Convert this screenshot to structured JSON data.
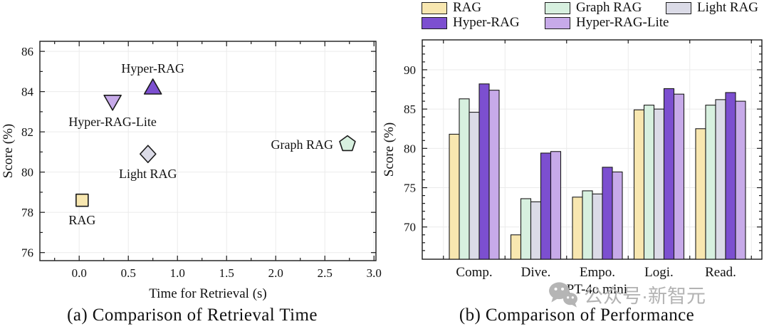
{
  "legend": {
    "items": [
      {
        "label": "RAG",
        "color": "#F8E7B0",
        "row": 0,
        "col": 0
      },
      {
        "label": "Graph RAG",
        "color": "#D7F0DF",
        "row": 0,
        "col": 1
      },
      {
        "label": "Light RAG",
        "color": "#DBDBE7",
        "row": 0,
        "col": 2
      },
      {
        "label": "Hyper-RAG",
        "color": "#7C4FD0",
        "row": 1,
        "col": 0
      },
      {
        "label": "Hyper-RAG-Lite",
        "color": "#C7AAE9",
        "row": 1,
        "col": 1
      }
    ]
  },
  "captions": {
    "a": "(a) Comparison of Retrieval Time",
    "b": "(b) Comparison of Performance"
  },
  "watermark": {
    "icon": "wechat-icon",
    "text": "公众号·新智元"
  },
  "chart_data": [
    {
      "type": "scatter",
      "title": "(a) Comparison of Retrieval Time",
      "xlabel": "Time for Retrieval (s)",
      "ylabel": "Score (%)",
      "xlim": [
        -0.4,
        3.02
      ],
      "ylim": [
        75.6,
        86.5
      ],
      "xticks": [
        0.0,
        0.5,
        1.0,
        1.5,
        2.0,
        2.5,
        3.0
      ],
      "yticks": [
        76,
        78,
        80,
        82,
        84,
        86
      ],
      "grid": true,
      "points": [
        {
          "name": "RAG",
          "x": 0.03,
          "y": 78.6,
          "marker": "square",
          "color": "#F8E7B0",
          "label_side": "below"
        },
        {
          "name": "Hyper-RAG-Lite",
          "x": 0.34,
          "y": 83.5,
          "marker": "triangle-down",
          "color": "#C7AAE9",
          "label_side": "below"
        },
        {
          "name": "Hyper-RAG",
          "x": 0.75,
          "y": 84.2,
          "marker": "triangle-up",
          "color": "#7C4FD0",
          "label_side": "above"
        },
        {
          "name": "Light RAG",
          "x": 0.7,
          "y": 80.9,
          "marker": "diamond",
          "color": "#DBDBE7",
          "label_side": "below"
        },
        {
          "name": "Graph RAG",
          "x": 2.73,
          "y": 81.4,
          "marker": "pentagon",
          "color": "#D7F0DF",
          "label_side": "left"
        }
      ]
    },
    {
      "type": "bar",
      "title": "(b) Comparison of Performance",
      "xlabel": "GPT-4o mini",
      "ylabel": "Score (%)",
      "categories": [
        "Comp.",
        "Dive.",
        "Empo.",
        "Logi.",
        "Read."
      ],
      "series": [
        {
          "name": "RAG",
          "color": "#F8E7B0",
          "values": [
            81.8,
            69.0,
            73.8,
            84.9,
            82.5
          ]
        },
        {
          "name": "Graph RAG",
          "color": "#D7F0DF",
          "values": [
            86.3,
            73.6,
            74.6,
            85.5,
            85.5
          ]
        },
        {
          "name": "Light RAG",
          "color": "#DBDBE7",
          "values": [
            84.6,
            73.2,
            74.2,
            85.0,
            86.2
          ]
        },
        {
          "name": "Hyper-RAG",
          "color": "#7C4FD0",
          "values": [
            88.2,
            79.4,
            77.6,
            87.6,
            87.1
          ]
        },
        {
          "name": "Hyper-RAG-Lite",
          "color": "#C7AAE9",
          "values": [
            87.4,
            79.6,
            77.0,
            86.9,
            86.0
          ]
        }
      ],
      "ylim": [
        65.9,
        93.8
      ],
      "yticks": [
        70,
        75,
        80,
        85,
        90
      ],
      "grid": true,
      "legend_position": "top"
    }
  ]
}
